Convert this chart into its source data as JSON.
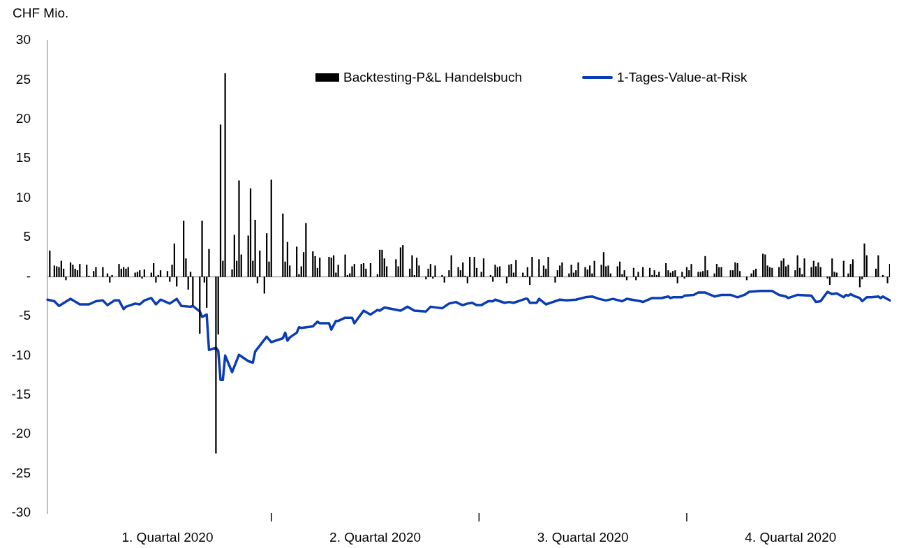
{
  "chart_data": {
    "type": "bar",
    "ylabel": "CHF Mio.",
    "legend": "top",
    "grid": false,
    "marker": "none",
    "categories": [
      null,
      null,
      null,
      null,
      null,
      null,
      null,
      null,
      null,
      null,
      null,
      null,
      null,
      null,
      null,
      null,
      null,
      null,
      null,
      null,
      null,
      null,
      null,
      null,
      null,
      null,
      null,
      null,
      null,
      null,
      null,
      null,
      null,
      null,
      null,
      null,
      null,
      null,
      null,
      null,
      null,
      null,
      null,
      null,
      null,
      null,
      null,
      null,
      null,
      null,
      null,
      null,
      "1. Quartal 2020",
      null,
      null,
      null,
      null,
      null,
      null,
      null,
      null,
      null,
      null,
      null,
      null,
      null,
      null,
      null,
      null,
      null,
      null,
      null,
      null,
      null,
      null,
      null,
      null,
      null,
      null,
      null,
      null,
      null,
      null,
      null,
      null,
      null,
      null,
      null,
      null,
      null,
      null,
      null,
      null,
      null,
      null,
      null,
      null,
      null,
      null,
      null,
      null,
      null,
      null,
      null,
      null,
      null,
      null,
      null,
      null,
      null,
      null,
      null,
      null,
      null,
      null,
      null,
      null,
      null,
      null,
      null,
      null,
      null,
      null,
      null,
      null,
      null,
      null,
      null,
      null,
      null,
      null,
      null,
      null,
      null,
      null,
      null,
      null,
      null,
      null,
      null,
      null,
      null,
      "2. Quartal 2020",
      null,
      null,
      null,
      null,
      null,
      null,
      null,
      null,
      null,
      null,
      null,
      null,
      null,
      null,
      null,
      null,
      null,
      null,
      null,
      null,
      null,
      null,
      null,
      null,
      null,
      null,
      null,
      null,
      null,
      null,
      null,
      null,
      null,
      null,
      null,
      null,
      null,
      null,
      null,
      null,
      null,
      null,
      null,
      null,
      null,
      null,
      null,
      null,
      null,
      null,
      null,
      null,
      null,
      null,
      null,
      null,
      null,
      null,
      null,
      null,
      null,
      null,
      null,
      null,
      null,
      null,
      null,
      null,
      null,
      null,
      null,
      null,
      null,
      null,
      null,
      null,
      null,
      null,
      null,
      null,
      null,
      null,
      null,
      null,
      null,
      null,
      null,
      null,
      null,
      "3. Quartal 2020",
      null,
      null,
      null,
      null,
      null,
      null,
      null,
      null,
      null,
      null,
      null,
      null,
      null,
      null,
      null,
      null,
      null,
      null,
      null,
      null,
      null,
      null,
      null,
      null,
      null,
      null,
      null,
      null,
      null,
      null,
      null,
      null,
      null,
      null,
      null,
      null,
      null,
      null,
      null,
      null,
      null,
      null,
      null,
      null,
      null,
      null,
      null,
      null,
      null,
      null,
      null,
      null,
      null,
      null,
      null,
      null,
      null,
      null,
      null,
      null,
      null,
      null,
      null,
      null,
      null,
      null,
      null,
      null,
      null,
      null,
      null,
      null,
      null,
      null,
      null,
      null,
      null,
      null,
      null,
      null,
      null,
      null,
      null,
      null,
      null,
      null,
      null,
      null,
      null,
      "4. Quartal 2020",
      null,
      null,
      null,
      null,
      null,
      null,
      null,
      null,
      null,
      null,
      null,
      null,
      null,
      null,
      null,
      null,
      null,
      null,
      null,
      null,
      null,
      null,
      null,
      null,
      null,
      null,
      null,
      null,
      null,
      null,
      null,
      null,
      null,
      null,
      null,
      null,
      null,
      null,
      null,
      null,
      null,
      null,
      null
    ],
    "ylim": [
      -30,
      30
    ],
    "yticks": [
      30,
      25,
      20,
      15,
      10,
      5,
      {
        "value": 0,
        "label": "-"
      },
      -5,
      -10,
      -15,
      -20,
      -25,
      -30
    ],
    "ref_lines": [
      {
        "axis": "y",
        "value": 0,
        "color": "#a6a6a6"
      }
    ],
    "series": [
      {
        "name": "Backtesting-P&L Handelsbuch",
        "color": "#000000",
        "values": [
          null,
          3.3,
          null,
          1.4,
          1.3,
          1.2,
          2.0,
          1.0,
          -0.4,
          null,
          1.8,
          1.5,
          1.0,
          0.8,
          1.6,
          null,
          null,
          1.5,
          0.1,
          null,
          0.7,
          1.2,
          null,
          null,
          1.2,
          null,
          0.4,
          -0.7,
          0.2,
          null,
          null,
          1.6,
          1.0,
          1.2,
          1.0,
          1.2,
          null,
          null,
          0.5,
          0.6,
          0.8,
          -0.2,
          0.9,
          null,
          null,
          0.5,
          1.7,
          -0.7,
          0.2,
          0.8,
          null,
          null,
          0.7,
          -0.6,
          1.5,
          4.2,
          -1.2,
          null,
          null,
          7.1,
          2.3,
          -1.6,
          0.6,
          -3.6,
          null,
          null,
          -7.2,
          7.1,
          -0.7,
          -3.9,
          3.5,
          null,
          null,
          -22.4,
          -7.3,
          19.3,
          2.0,
          25.8,
          null,
          null,
          0.9,
          5.3,
          2.0,
          12.2,
          2.8,
          null,
          null,
          5.2,
          11.2,
          2.0,
          7.2,
          -0.8,
          3.3,
          null,
          -2.1,
          5.5,
          1.9,
          12.3,
          null,
          null,
          null,
          null,
          8.0,
          1.9,
          4.4,
          1.4,
          null,
          null,
          3.8,
          0.3,
          1.3,
          3.1,
          6.8,
          null,
          null,
          3.2,
          2.6,
          1.1,
          2.4,
          null,
          null,
          null,
          2.5,
          2.4,
          2.7,
          0.5,
          1.5,
          null,
          null,
          2.8,
          0.2,
          0.4,
          1.3,
          1.6,
          null,
          null,
          1.6,
          1.7,
          1.0,
          null,
          1.7,
          null,
          null,
          0.3,
          3.4,
          3.4,
          2.3,
          1.3,
          null,
          null,
          null,
          2.2,
          1.3,
          3.7,
          4.0,
          null,
          null,
          1.0,
          2.7,
          0.2,
          2.4,
          1.4,
          null,
          null,
          -0.3,
          1.0,
          1.6,
          -0.2,
          1.4,
          null,
          null,
          0.2,
          -0.7,
          null,
          0.8,
          2.7,
          null,
          null,
          1.2,
          0.8,
          1.8,
          0.1,
          -0.8,
          2.5,
          null,
          2.5,
          1.1,
          null,
          0.6,
          2.3,
          null,
          null,
          0.2,
          -0.6,
          1.5,
          1.2,
          1.3,
          null,
          null,
          -0.8,
          1.5,
          1.6,
          0.5,
          2.1,
          null,
          null,
          0.5,
          0.1,
          1.2,
          -1.0,
          2.5,
          null,
          null,
          2.2,
          0.1,
          1.4,
          1.0,
          2.5,
          null,
          null,
          -0.7,
          0.8,
          1.4,
          1.8,
          null,
          null,
          0.4,
          1.5,
          0.5,
          0.8,
          1.8,
          null,
          null,
          1.2,
          0.9,
          1.4,
          0.4,
          2.0,
          null,
          null,
          1.5,
          3.1,
          1.3,
          1.4,
          0.4,
          null,
          null,
          1.3,
          1.9,
          0.3,
          0.8,
          -0.4,
          null,
          null,
          1.1,
          -0.4,
          0.6,
          null,
          1.2,
          null,
          null,
          1.1,
          0.2,
          0.8,
          0.2,
          0.6,
          null,
          null,
          1.7,
          0.8,
          0.5,
          0.7,
          0.8,
          -0.8,
          null,
          0.6,
          -0.2,
          1.2,
          0.8,
          1.6,
          null,
          null,
          0.6,
          0.6,
          0.7,
          2.6,
          0.8,
          null,
          null,
          0.4,
          1.6,
          1.2,
          1.2,
          null,
          null,
          null,
          0.8,
          0.8,
          1.8,
          1.7,
          0.7,
          null,
          null,
          -0.4,
          null,
          0.4,
          0.8,
          1.0,
          null,
          null,
          2.9,
          2.8,
          1.4,
          1.2,
          1.1,
          null,
          null,
          1.2,
          2.0,
          2.3,
          1.3,
          1.5,
          null,
          null,
          0.8,
          2.7,
          1.1,
          0.3,
          2.3,
          null,
          null,
          1.2,
          2.0,
          1.3,
          1.8,
          1.2,
          null,
          null,
          -0.2,
          -1.0,
          2.3,
          0.6,
          0.5,
          null,
          null,
          2.0,
          null,
          0.4,
          1.6,
          2.2,
          null,
          null,
          -1.3,
          -0.3,
          4.2,
          2.7,
          null,
          null,
          null,
          1.0,
          2.7,
          null,
          0.2,
          null,
          -0.8,
          1.6
        ]
      },
      {
        "name": "1-Tages-Value-at-Risk",
        "type": "line",
        "color": "#0a3cb4",
        "values": [
          -2.9,
          null,
          null,
          -3.1,
          null,
          -3.7,
          null,
          null,
          null,
          null,
          -2.8,
          null,
          null,
          null,
          -3.5,
          null,
          null,
          null,
          -3.5,
          null,
          null,
          -3.1,
          null,
          null,
          -3.0,
          null,
          -3.6,
          null,
          null,
          -3.0,
          null,
          -3.0,
          null,
          -4.1,
          -3.8,
          null,
          null,
          null,
          -3.4,
          null,
          -3.5,
          null,
          -3.0,
          null,
          null,
          -2.7,
          null,
          -3.5,
          null,
          -2.9,
          null,
          null,
          null,
          -3.4,
          null,
          null,
          -2.8,
          null,
          -3.7,
          null,
          null,
          null,
          -3.8,
          -3.7,
          null,
          null,
          -4.4,
          -5.1,
          null,
          -4.8,
          -9.3,
          null,
          null,
          -9.0,
          -9.4,
          -13.1,
          -13.1,
          -10.0,
          null,
          null,
          -12.1,
          null,
          null,
          -9.9,
          null,
          null,
          null,
          -10.7,
          null,
          -10.9,
          -9.5,
          null,
          null,
          null,
          null,
          -7.6,
          null,
          -8.3,
          null,
          null,
          null,
          null,
          -7.8,
          -7.1,
          -8.1,
          -7.7,
          null,
          null,
          -7.1,
          -6.4,
          -6.5,
          null,
          null,
          null,
          null,
          -6.3,
          null,
          -5.7,
          -5.9,
          null,
          null,
          null,
          -5.9,
          -6.7,
          null,
          -5.6,
          -5.6,
          null,
          null,
          -5.2,
          null,
          null,
          -5.2,
          -5.9,
          null,
          -5.1,
          null,
          -4.3,
          null,
          null,
          -4.8,
          null,
          null,
          -4.2,
          -4.3,
          null,
          -3.9,
          null,
          null,
          null,
          null,
          null,
          null,
          -4.3,
          null,
          null,
          -3.8,
          null,
          null,
          -4.3,
          null,
          null,
          null,
          null,
          -4.4,
          null,
          -3.8,
          null,
          null,
          null,
          null,
          -4.0,
          null,
          null,
          -3.4,
          null,
          null,
          -3.2,
          null,
          -3.5,
          -3.6,
          null,
          -3.4,
          null,
          -3.3,
          null,
          -3.6,
          null,
          -3.6,
          null,
          null,
          -3.1,
          null,
          -3.1,
          -2.9,
          null,
          null,
          null,
          -3.3,
          null,
          -3.2,
          null,
          -3.3,
          null,
          null,
          -3.0,
          null,
          -2.8,
          -2.8,
          -3.3,
          null,
          null,
          -3.3,
          -2.8,
          null,
          null,
          -3.5,
          null,
          null,
          -3.2,
          null,
          null,
          -2.9,
          null,
          null,
          -3.0,
          null,
          null,
          null,
          -2.9,
          null,
          null,
          null,
          -2.6,
          null,
          null,
          -2.5,
          null,
          null,
          -2.8,
          null,
          null,
          -3.0,
          null,
          null,
          -2.8,
          null,
          null,
          null,
          -3.1,
          null,
          -2.8,
          null,
          null,
          null,
          null,
          null,
          -3.1,
          -3.2,
          null,
          null,
          null,
          -2.7,
          null,
          null,
          null,
          -2.7,
          null,
          null,
          -2.5,
          -2.7,
          -2.6,
          null,
          null,
          null,
          -2.6,
          -2.4,
          null,
          null,
          null,
          -2.3,
          null,
          -2.0,
          null,
          null,
          -2.0,
          null,
          null,
          null,
          -2.5,
          null,
          null,
          -2.3,
          null,
          null,
          null,
          -2.3,
          null,
          null,
          -2.6,
          null,
          null,
          -2.3,
          null,
          -1.9,
          null,
          null,
          null,
          null,
          -1.8,
          null,
          null,
          null,
          null,
          -1.8,
          null,
          null,
          -2.3,
          null,
          null,
          -2.5,
          -2.7,
          null,
          null,
          null,
          -2.3,
          null,
          null,
          null,
          null,
          null,
          -2.4,
          null,
          -3.2,
          null,
          -3.1,
          null,
          null,
          -1.9,
          null,
          -2.2,
          null,
          -2.1,
          null,
          null,
          -2.6,
          -2.3,
          -2.4,
          -2.2,
          null,
          -2.5,
          null,
          -2.7,
          -3.1,
          null,
          -2.6,
          null,
          -2.6,
          null,
          null,
          -2.5,
          -2.7,
          -2.5,
          null,
          null,
          -3.0
        ]
      }
    ]
  }
}
